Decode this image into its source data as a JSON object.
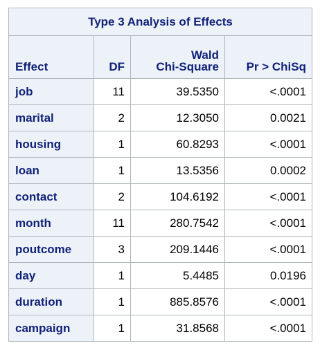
{
  "table": {
    "title": "Type 3 Analysis of Effects",
    "headers": {
      "effect": "Effect",
      "df": "DF",
      "chi_line1": "Wald",
      "chi_line2": "Chi-Square",
      "p": "Pr > ChiSq"
    },
    "rows": [
      {
        "effect": "job",
        "df": "11",
        "chi": "39.5350",
        "p": "<.0001"
      },
      {
        "effect": "marital",
        "df": "2",
        "chi": "12.3050",
        "p": "0.0021"
      },
      {
        "effect": "housing",
        "df": "1",
        "chi": "60.8293",
        "p": "<.0001"
      },
      {
        "effect": "loan",
        "df": "1",
        "chi": "13.5356",
        "p": "0.0002"
      },
      {
        "effect": "contact",
        "df": "2",
        "chi": "104.6192",
        "p": "<.0001"
      },
      {
        "effect": "month",
        "df": "11",
        "chi": "280.7542",
        "p": "<.0001"
      },
      {
        "effect": "poutcome",
        "df": "3",
        "chi": "209.1446",
        "p": "<.0001"
      },
      {
        "effect": "day",
        "df": "1",
        "chi": "5.4485",
        "p": "0.0196"
      },
      {
        "effect": "duration",
        "df": "1",
        "chi": "885.8576",
        "p": "<.0001"
      },
      {
        "effect": "campaign",
        "df": "1",
        "chi": "31.8568",
        "p": "<.0001"
      }
    ]
  },
  "colors": {
    "header_background": "#edf2f9",
    "header_text": "#112277",
    "grid_lines": "#b0b7bb",
    "cell_background": "#ffffff",
    "cell_text": "#000000"
  }
}
